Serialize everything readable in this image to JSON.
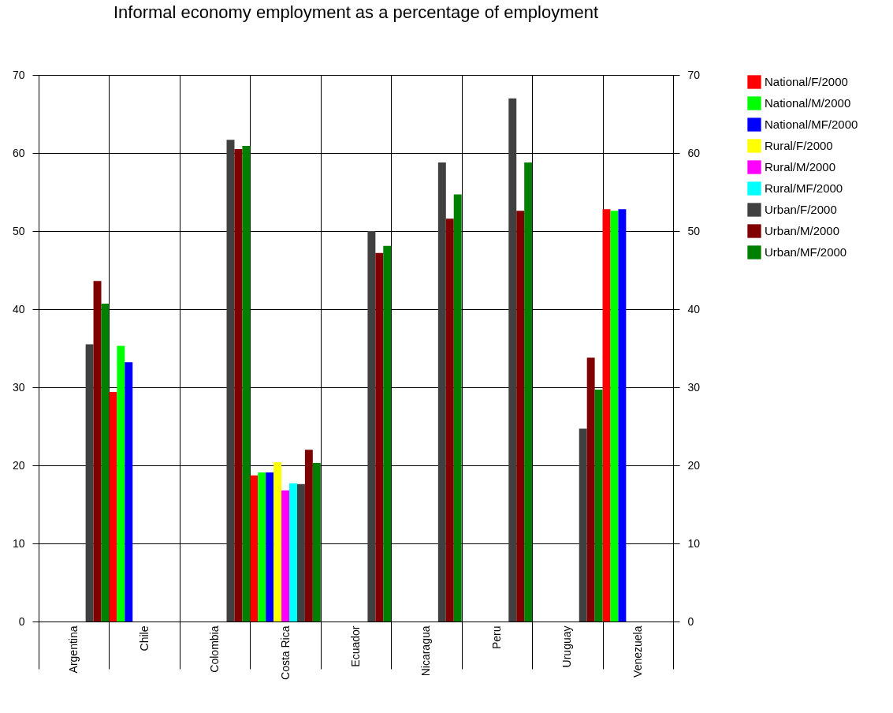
{
  "chart_data": {
    "type": "bar",
    "title": "Informal economy employment as a percentage of employment",
    "categories": [
      "Argentina",
      "Chile",
      "Colombia",
      "Costa Rica",
      "Ecuador",
      "Nicaragua",
      "Peru",
      "Uruguay",
      "Venezuela"
    ],
    "series": [
      {
        "name": "National/F/2000",
        "color": "#ff0000",
        "values": [
          null,
          29.4,
          null,
          18.7,
          null,
          null,
          null,
          null,
          52.8
        ]
      },
      {
        "name": "National/M/2000",
        "color": "#00ff00",
        "values": [
          null,
          35.3,
          null,
          19.1,
          null,
          null,
          null,
          null,
          52.6
        ]
      },
      {
        "name": "National/MF/2000",
        "color": "#0000ff",
        "values": [
          null,
          33.2,
          null,
          19.1,
          null,
          null,
          null,
          null,
          52.8
        ]
      },
      {
        "name": "Rural/F/2000",
        "color": "#ffff00",
        "values": [
          null,
          null,
          null,
          20.4,
          null,
          null,
          null,
          null,
          null
        ]
      },
      {
        "name": "Rural/M/2000",
        "color": "#ff00ff",
        "values": [
          null,
          null,
          null,
          16.8,
          null,
          null,
          null,
          null,
          null
        ]
      },
      {
        "name": "Rural/MF/2000",
        "color": "#00ffff",
        "values": [
          null,
          null,
          null,
          17.7,
          null,
          null,
          null,
          null,
          null
        ]
      },
      {
        "name": "Urban/F/2000",
        "color": "#404040",
        "values": [
          35.5,
          null,
          61.7,
          17.6,
          50.0,
          58.8,
          67.0,
          24.7,
          null
        ]
      },
      {
        "name": "Urban/M/2000",
        "color": "#800000",
        "values": [
          43.6,
          null,
          60.5,
          22.0,
          47.2,
          51.6,
          52.6,
          33.8,
          null
        ]
      },
      {
        "name": "Urban/MF/2000",
        "color": "#008000",
        "values": [
          40.7,
          null,
          60.9,
          20.3,
          48.1,
          54.7,
          58.8,
          29.7,
          null
        ]
      }
    ],
    "ylim": [
      0,
      70
    ],
    "yticks": [
      0,
      10,
      20,
      30,
      40,
      50,
      60,
      70
    ],
    "y2lim": [
      0,
      70
    ],
    "y2ticks": [
      0,
      10,
      20,
      30,
      40,
      50,
      60,
      70
    ],
    "grid": true,
    "legend": "right"
  }
}
